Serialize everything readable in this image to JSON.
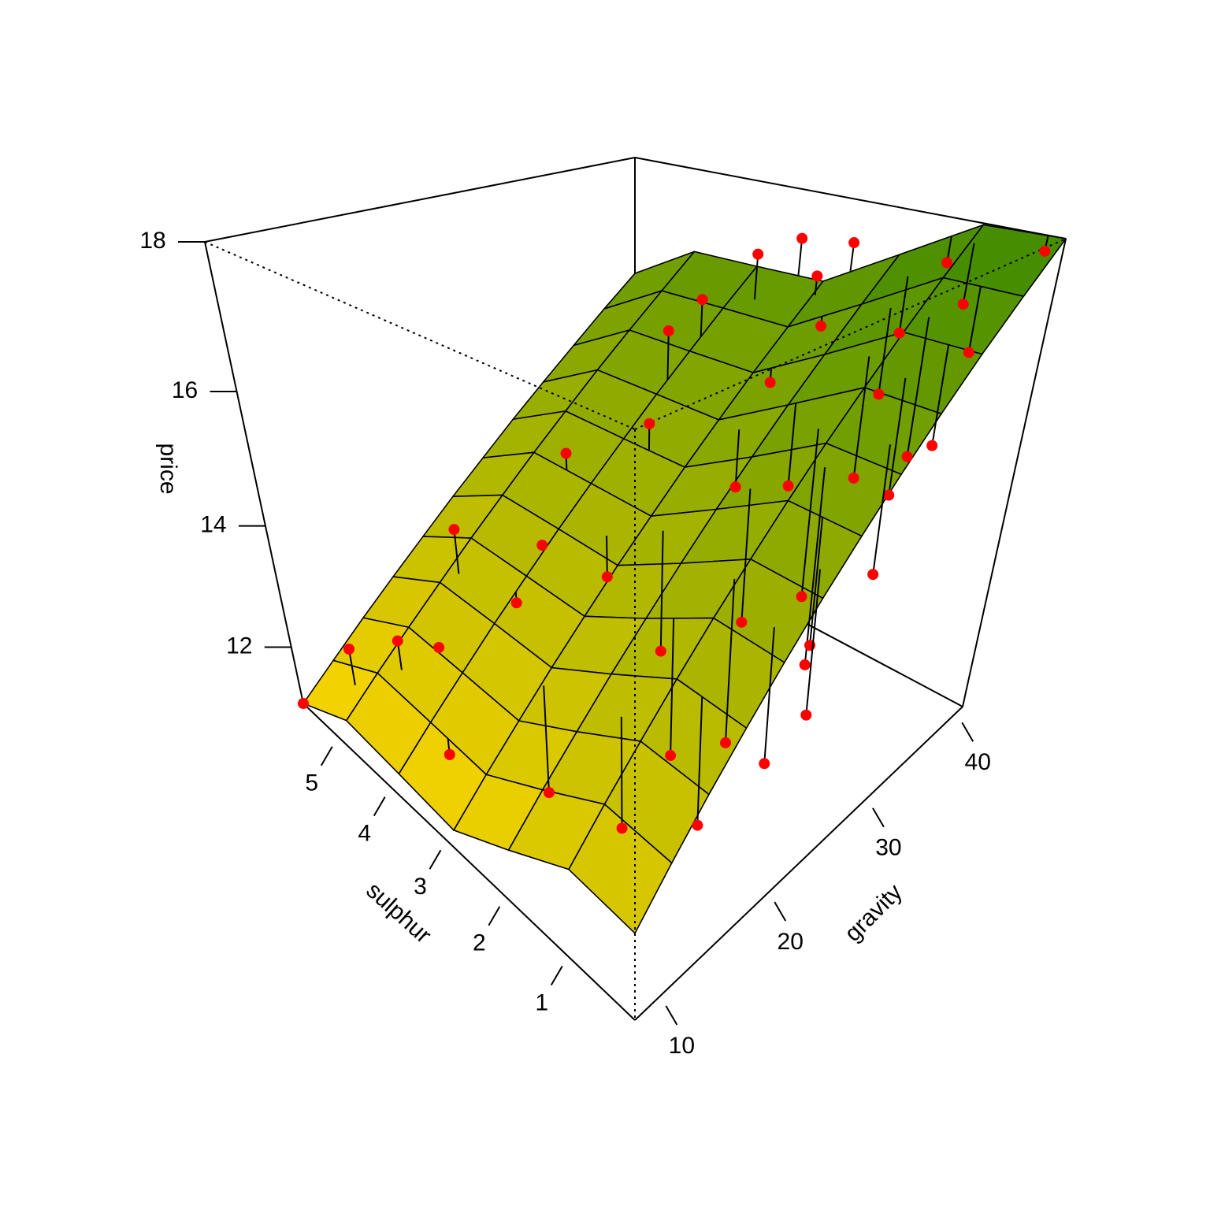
{
  "chart_data": {
    "type": "surface3d",
    "xlabel": "gravity",
    "ylabel": "sulphur",
    "zlabel": "price",
    "xlim": [
      8,
      41
    ],
    "ylim": [
      0,
      5.7
    ],
    "zlim": [
      11,
      18
    ],
    "xticks": [
      10,
      20,
      30,
      40
    ],
    "yticks": [
      1,
      2,
      3,
      4,
      5
    ],
    "zticks": [
      12,
      14,
      16,
      18
    ],
    "colormap": [
      "#ffd700",
      "#3f8a00"
    ],
    "surface": {
      "gravity": [
        8,
        11,
        14,
        17,
        20,
        23,
        26,
        29,
        32,
        35,
        38,
        41
      ],
      "sulphur": [
        0,
        0.95,
        1.9,
        2.85,
        3.8,
        4.75,
        5.7
      ],
      "price": [
        [
          12.2,
          12.3,
          11.8,
          11.3,
          11.4,
          11.5,
          11.0
        ],
        [
          12.73,
          12.82,
          12.31,
          11.8,
          11.89,
          11.98,
          11.46
        ],
        [
          13.26,
          13.33,
          12.81,
          12.29,
          12.37,
          12.45,
          11.93
        ],
        [
          13.78,
          13.85,
          13.32,
          12.79,
          12.86,
          12.92,
          12.39
        ],
        [
          14.31,
          14.37,
          13.82,
          13.28,
          13.34,
          13.4,
          12.85
        ],
        [
          14.84,
          14.88,
          14.33,
          13.78,
          13.83,
          13.87,
          13.32
        ],
        [
          15.36,
          15.4,
          14.84,
          14.27,
          14.31,
          14.35,
          13.78
        ],
        [
          15.89,
          15.92,
          15.34,
          14.77,
          14.79,
          14.82,
          14.25
        ],
        [
          16.42,
          16.43,
          15.85,
          15.26,
          15.28,
          15.3,
          14.71
        ],
        [
          16.95,
          16.95,
          16.35,
          15.76,
          15.76,
          15.77,
          15.17
        ],
        [
          17.47,
          17.47,
          16.86,
          16.25,
          16.25,
          16.24,
          15.64
        ],
        [
          18.0,
          17.98,
          17.37,
          16.75,
          16.73,
          16.72,
          16.1
        ]
      ]
    },
    "points": {
      "color": "#ff0000",
      "gravity": [
        8,
        10,
        12,
        14,
        11,
        16,
        18,
        19,
        22,
        24,
        26,
        25,
        20,
        22,
        27,
        28,
        30,
        31,
        29,
        33,
        32,
        34,
        35,
        36,
        38,
        37,
        39,
        40,
        41,
        41,
        40,
        38,
        35,
        33,
        30,
        26,
        24,
        21,
        17,
        15,
        36,
        39,
        41,
        41
      ],
      "sulphur": [
        5.7,
        5.0,
        4.5,
        4.2,
        3.5,
        2.8,
        4.6,
        3.8,
        3.9,
        3.2,
        4.2,
        2.5,
        1.5,
        1.0,
        1.6,
        0.8,
        1.2,
        2.4,
        3.4,
        3.8,
        1.8,
        1.2,
        2.6,
        0.8,
        2.4,
        1.4,
        1.5,
        2.8,
        1.3,
        0.2,
        0.9,
        0.5,
        0.4,
        0.6,
        0.3,
        0.5,
        0.2,
        0.3,
        0.6,
        1.4,
        3.8,
        3.5,
        2.5,
        3.2
      ],
      "price": [
        11.0,
        12.3,
        12.6,
        12.5,
        11.6,
        10.9,
        13.8,
        13.0,
        13.6,
        13.3,
        14.6,
        12.4,
        12.0,
        12.3,
        13.2,
        12.9,
        13.5,
        14.5,
        15.2,
        16.2,
        14.7,
        14.9,
        15.7,
        15.2,
        16.4,
        15.8,
        16.5,
        16.9,
        17.4,
        17.8,
        17.0,
        16.6,
        15.6,
        15.0,
        14.3,
        13.6,
        13.0,
        12.6,
        12.0,
        11.6,
        16.5,
        17.1,
        17.4,
        17.3
      ]
    }
  }
}
